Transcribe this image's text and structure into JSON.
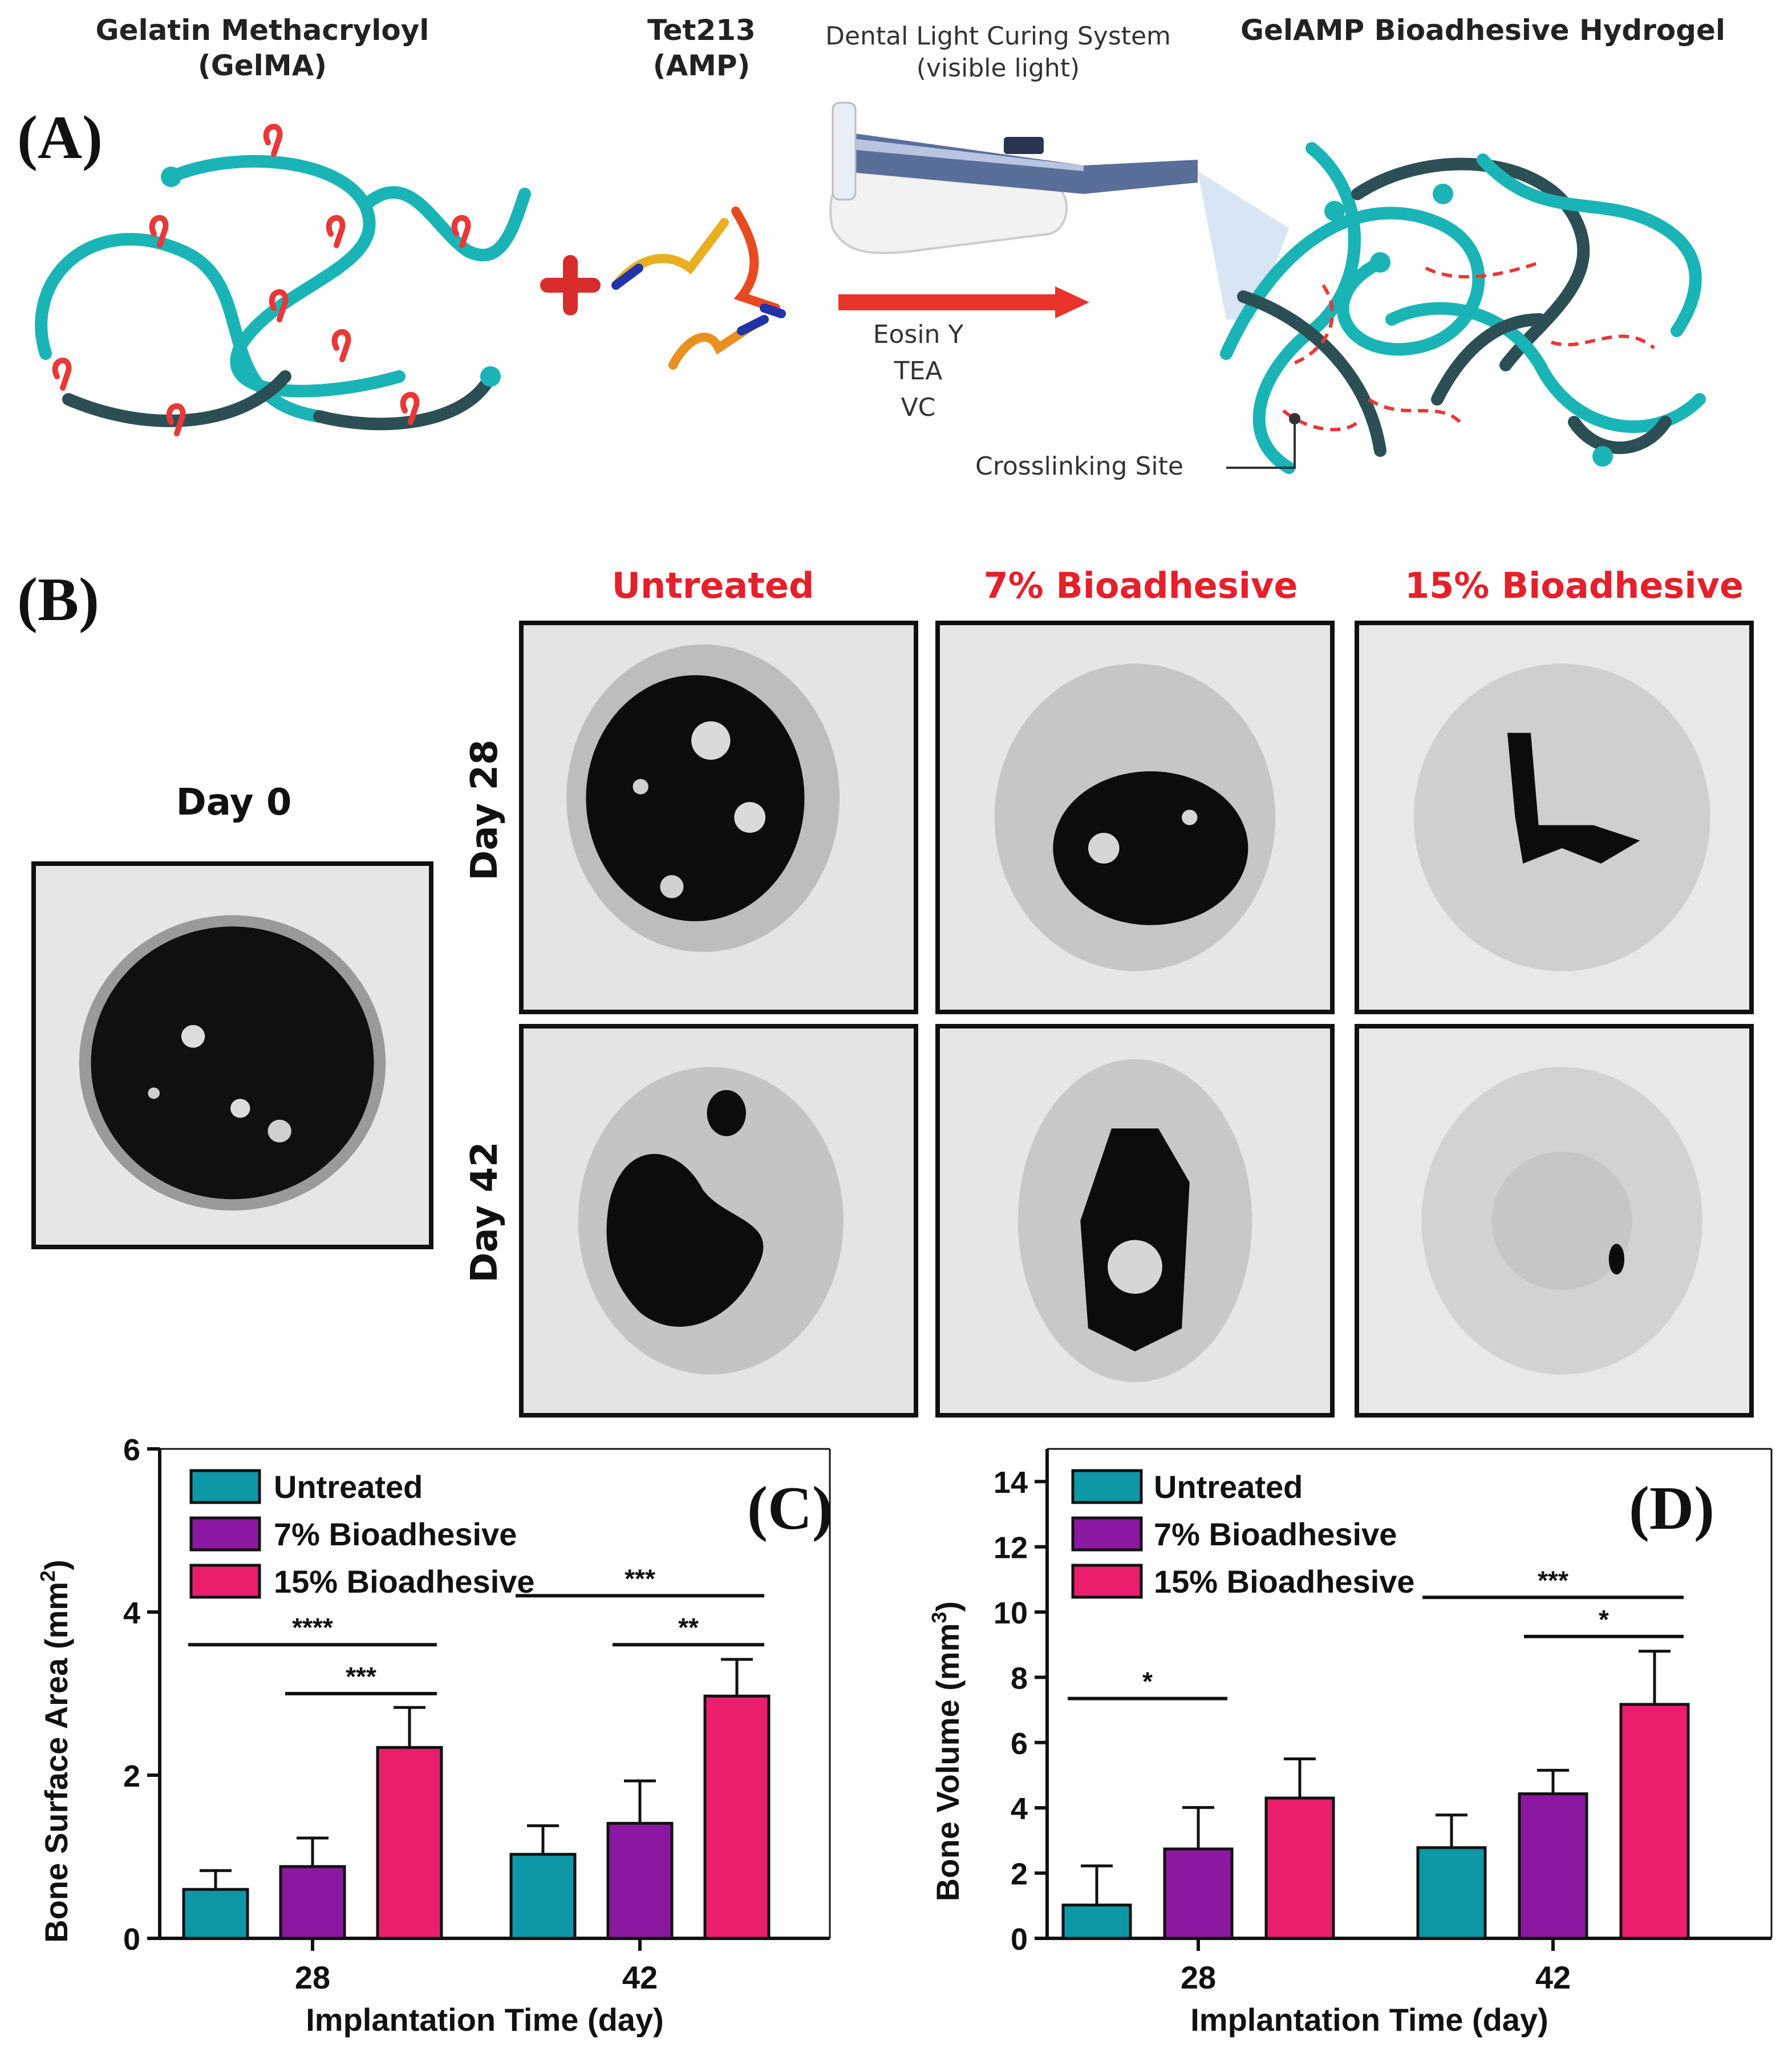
{
  "panel_a": {
    "letter": "(A)",
    "gelma_label": [
      "Gelatin Methacryloyl",
      "(GelMA)"
    ],
    "amp_label": [
      "Tet213",
      "(AMP)"
    ],
    "light_label": [
      "Dental Light Curing System",
      "(visible light)"
    ],
    "product_label": "GelAMP Bioadhesive Hydrogel",
    "reagents": [
      "Eosin Y",
      "TEA",
      "VC"
    ],
    "crosslink_label": "Crosslinking Site"
  },
  "panel_b": {
    "letter": "(B)",
    "day0_label": "Day 0",
    "columns": [
      "Untreated",
      "7% Bioadhesive",
      "15% Bioadhesive"
    ],
    "rows": [
      "Day 28",
      "Day 42"
    ]
  },
  "colors": {
    "untreated": "#0e98a6",
    "bio7": "#8b18a0",
    "bio15": "#ea1e6c",
    "title_red": "#e4202a",
    "teal_chain": "#1ab4b6"
  },
  "chart_data": [
    {
      "type": "bar",
      "panel": "(C)",
      "categories": [
        "28",
        "42"
      ],
      "series": [
        {
          "name": "Untreated",
          "values": [
            0.6,
            1.03
          ],
          "errors": [
            0.23,
            0.35
          ]
        },
        {
          "name": "7% Bioadhesive",
          "values": [
            0.88,
            1.41
          ],
          "errors": [
            0.35,
            0.52
          ]
        },
        {
          "name": "15% Bioadhesive",
          "values": [
            2.34,
            2.97
          ],
          "errors": [
            0.49,
            0.45
          ]
        }
      ],
      "xlabel": "Implantation Time (day)",
      "ylabel_parts": [
        "Bone Surface Area (mm",
        "2",
        ")"
      ],
      "ylim": [
        0,
        6
      ],
      "yticks": [
        0,
        2,
        4,
        6
      ],
      "legend_position": "top-left",
      "significance": [
        {
          "group": 0,
          "from": 0,
          "to": 2,
          "level": 3.6,
          "label": "****"
        },
        {
          "group": 0,
          "from": 1,
          "to": 2,
          "level": 3.0,
          "label": "***"
        },
        {
          "group": 1,
          "from": 0,
          "to": 2,
          "level": 4.2,
          "label": "***"
        },
        {
          "group": 1,
          "from": 1,
          "to": 2,
          "level": 3.6,
          "label": "**"
        }
      ]
    },
    {
      "type": "bar",
      "panel": "(D)",
      "categories": [
        "28",
        "42"
      ],
      "series": [
        {
          "name": "Untreated",
          "values": [
            1.02,
            2.78
          ],
          "errors": [
            1.2,
            1.0
          ]
        },
        {
          "name": "7% Bioadhesive",
          "values": [
            2.74,
            4.43
          ],
          "errors": [
            1.27,
            0.72
          ]
        },
        {
          "name": "15% Bioadhesive",
          "values": [
            4.3,
            7.17
          ],
          "errors": [
            1.2,
            1.63
          ]
        }
      ],
      "xlabel": "Implantation Time (day)",
      "ylabel_parts": [
        "Bone Volume (mm",
        "3",
        ")"
      ],
      "ylim": [
        0,
        15
      ],
      "yticks": [
        0,
        2,
        4,
        6,
        8,
        10,
        12,
        14
      ],
      "legend_position": "top-left",
      "significance": [
        {
          "group": 0,
          "from": 0,
          "to": 1,
          "level": 7.35,
          "label": "*"
        },
        {
          "group": 1,
          "from": 0,
          "to": 2,
          "level": 10.45,
          "label": "***"
        },
        {
          "group": 1,
          "from": 1,
          "to": 2,
          "level": 9.25,
          "label": "*"
        }
      ]
    }
  ]
}
